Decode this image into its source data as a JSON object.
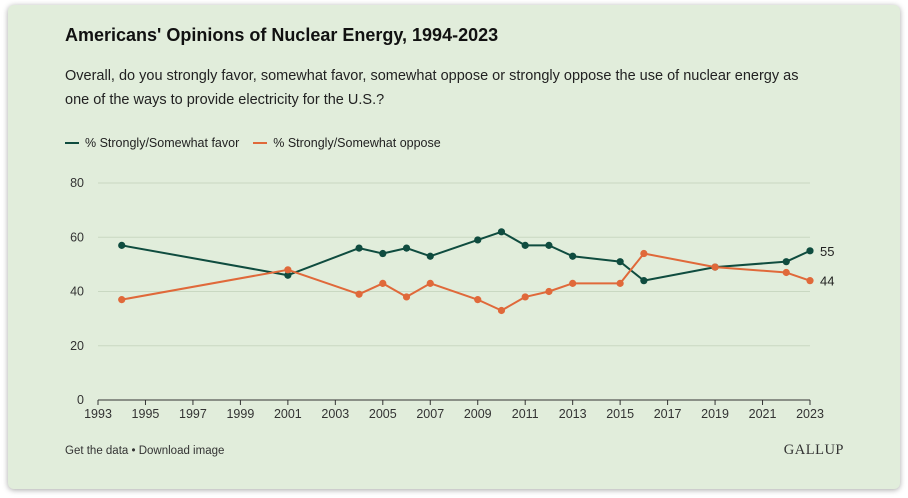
{
  "header": {
    "title": "Americans' Opinions of Nuclear Energy, 1994-2023",
    "subtitle": "Overall, do you strongly favor, somewhat favor, somewhat oppose or strongly oppose the use of nuclear energy as one of the ways to provide electricity for the U.S.?"
  },
  "footer": {
    "get_data": "Get the data",
    "separator": " • ",
    "download": "Download image",
    "brand": "GALLUP"
  },
  "colors": {
    "background": "#e1eddb",
    "favor": "#0f4c3f",
    "oppose": "#e0693a",
    "grid": "#c9d8c2"
  },
  "chart_data": {
    "type": "line",
    "x": [
      1994,
      2001,
      2004,
      2005,
      2006,
      2007,
      2009,
      2010,
      2011,
      2012,
      2013,
      2015,
      2016,
      2019,
      2022,
      2023
    ],
    "series": [
      {
        "name": "% Strongly/Somewhat favor",
        "color": "#0f4c3f",
        "values": [
          57,
          46,
          56,
          54,
          56,
          53,
          59,
          62,
          57,
          57,
          53,
          51,
          44,
          49,
          51,
          55
        ],
        "end_label": "55"
      },
      {
        "name": "% Strongly/Somewhat oppose",
        "color": "#e0693a",
        "values": [
          37,
          48,
          39,
          43,
          38,
          43,
          37,
          33,
          38,
          40,
          43,
          43,
          54,
          49,
          47,
          44
        ],
        "end_label": "44"
      }
    ],
    "xlim": [
      1993,
      2023
    ],
    "ylim": [
      0,
      80
    ],
    "xticks": [
      "1993",
      "1995",
      "1997",
      "1999",
      "2001",
      "2003",
      "2005",
      "2007",
      "2009",
      "2011",
      "2013",
      "2015",
      "2017",
      "2019",
      "2021",
      "2023"
    ],
    "yticks": [
      "0",
      "20",
      "40",
      "60",
      "80"
    ],
    "grid": true,
    "legend": "top-left"
  }
}
